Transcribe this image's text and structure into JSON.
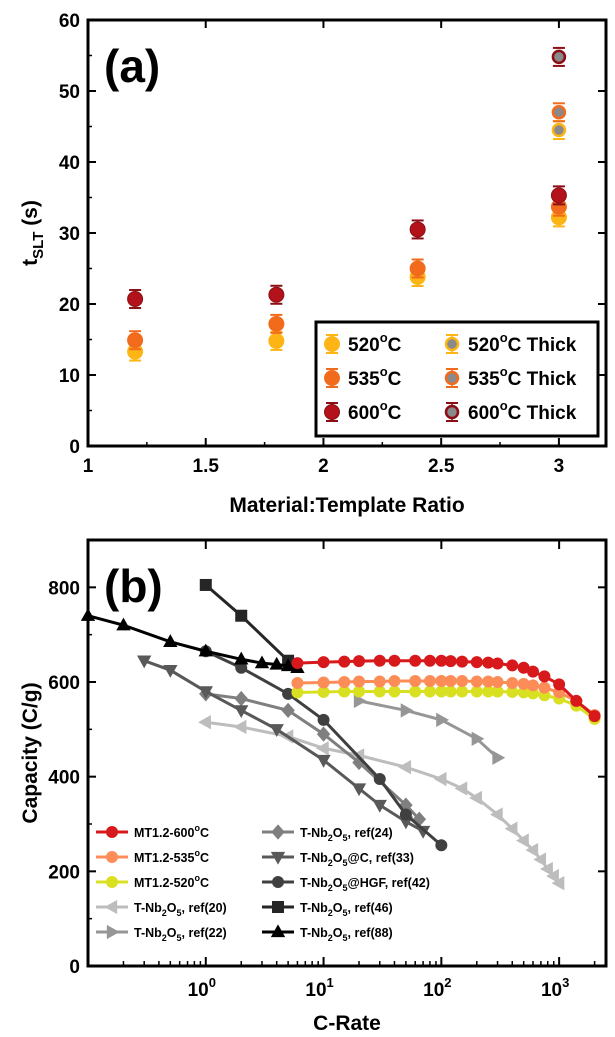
{
  "chart_data": [
    {
      "type": "scatter",
      "panel_label": "(a)",
      "xlabel": "Material:Template Ratio",
      "ylabel": "t_SLT (s)",
      "ylabel_main": "t",
      "ylabel_sub": "SLT",
      "ylabel_unit": " (s)",
      "xlim": [
        1,
        3.2
      ],
      "ylim": [
        0,
        60
      ],
      "xticks": [
        "1",
        "1.5",
        "2",
        "2.5",
        "3"
      ],
      "xtick_values": [
        1,
        1.5,
        2,
        2.5,
        3
      ],
      "yticks": [
        "0",
        "10",
        "20",
        "30",
        "40",
        "50",
        "60"
      ],
      "ytick_values": [
        0,
        10,
        20,
        30,
        40,
        50,
        60
      ],
      "legend_position": "bottom-right",
      "series": [
        {
          "name": "520°C",
          "label_main": "520",
          "label_sup": "o",
          "label_tail": "C",
          "color": "#FDB515",
          "edge": "#FDB515",
          "points": [
            [
              1.2,
              13.3
            ],
            [
              1.8,
              14.8
            ],
            [
              2.4,
              23.8
            ],
            [
              3,
              32.2
            ]
          ]
        },
        {
          "name": "535°C",
          "label_main": "535",
          "label_sup": "o",
          "label_tail": "C",
          "color": "#F26B1D",
          "edge": "#F26B1D",
          "points": [
            [
              1.2,
              14.9
            ],
            [
              1.8,
              17.2
            ],
            [
              2.4,
              25.0
            ],
            [
              3,
              33.7
            ]
          ]
        },
        {
          "name": "600°C",
          "label_main": "600",
          "label_sup": "o",
          "label_tail": "C",
          "color": "#B3121B",
          "edge": "#8B0E14",
          "points": [
            [
              1.2,
              20.7
            ],
            [
              1.8,
              21.3
            ],
            [
              2.4,
              30.5
            ],
            [
              3,
              35.3
            ]
          ]
        },
        {
          "name": "520°C Thick",
          "label_main": "520",
          "label_sup": "o",
          "label_tail": "C Thick",
          "color": "#8A8A8A",
          "edge": "#FDB515",
          "points": [
            [
              3,
              44.5
            ]
          ]
        },
        {
          "name": "535°C Thick",
          "label_main": "535",
          "label_sup": "o",
          "label_tail": "C Thick",
          "color": "#8A8A8A",
          "edge": "#F26B1D",
          "points": [
            [
              3,
              47.0
            ]
          ]
        },
        {
          "name": "600°C Thick",
          "label_main": "600",
          "label_sup": "o",
          "label_tail": "C Thick",
          "color": "#8A8A8A",
          "edge": "#8B0E14",
          "points": [
            [
              3,
              54.8
            ]
          ]
        }
      ]
    },
    {
      "type": "line",
      "panel_label": "(b)",
      "xlabel": "C-Rate",
      "ylabel": "Capacity (C/g)",
      "x_scale": "log",
      "xlim": [
        0.1,
        2500
      ],
      "ylim": [
        0,
        900
      ],
      "xticks_base": "10",
      "xticks_exp": [
        "0",
        "1",
        "2",
        "3"
      ],
      "xtick_values": [
        1,
        10,
        100,
        1000
      ],
      "yticks": [
        "0",
        "200",
        "400",
        "600",
        "800"
      ],
      "ytick_values": [
        0,
        200,
        400,
        600,
        800
      ],
      "legend_position": "bottom-left",
      "series": [
        {
          "name": "MT1.2-600°C",
          "label_main": "MT1.2-600",
          "label_sup": "o",
          "label_tail": "C",
          "color": "#D7191C",
          "marker": "circle",
          "x": [
            6,
            10,
            15,
            20,
            30,
            40,
            60,
            80,
            100,
            120,
            150,
            200,
            250,
            300,
            400,
            500,
            600,
            750,
            1000,
            1400,
            2000
          ],
          "y": [
            640,
            642,
            643,
            644,
            645,
            645,
            645,
            645,
            645,
            644,
            643,
            642,
            641,
            639,
            635,
            630,
            622,
            612,
            595,
            560,
            528
          ]
        },
        {
          "name": "MT1.2-535°C",
          "label_main": "MT1.2-535",
          "label_sup": "o",
          "label_tail": "C",
          "color": "#FC8D59",
          "marker": "circle",
          "x": [
            6,
            10,
            15,
            20,
            30,
            40,
            60,
            80,
            100,
            120,
            150,
            200,
            250,
            300,
            400,
            500,
            600,
            750,
            1000,
            1400,
            2000
          ],
          "y": [
            598,
            599,
            600,
            601,
            601,
            602,
            602,
            602,
            602,
            602,
            602,
            601,
            601,
            600,
            598,
            596,
            593,
            588,
            578,
            560,
            530
          ]
        },
        {
          "name": "MT1.2-520°C",
          "label_main": "MT1.2-520",
          "label_sup": "o",
          "label_tail": "C",
          "color": "#D9E021",
          "marker": "circle",
          "x": [
            6,
            10,
            15,
            20,
            30,
            40,
            60,
            80,
            100,
            120,
            150,
            200,
            250,
            300,
            400,
            500,
            600,
            750,
            1000,
            1400,
            2000
          ],
          "y": [
            578,
            579,
            580,
            580,
            580,
            580,
            580,
            580,
            580,
            580,
            580,
            580,
            580,
            580,
            579,
            578,
            576,
            572,
            565,
            550,
            522
          ]
        },
        {
          "name": "T-Nb2O5, ref(20)",
          "label_pre": "T-Nb",
          "label_s1": "2",
          "label_mid": "O",
          "label_s2": "5",
          "label_post": ", ref(20)",
          "color": "#BDBDBD",
          "marker": "triangle-left",
          "x": [
            1,
            2,
            5,
            10,
            20,
            50,
            100,
            150,
            200,
            300,
            400,
            500,
            600,
            700,
            800,
            900,
            1000
          ],
          "y": [
            515,
            505,
            485,
            460,
            445,
            420,
            395,
            375,
            355,
            320,
            290,
            265,
            245,
            225,
            205,
            190,
            175
          ]
        },
        {
          "name": "T-Nb2O5, ref(22)",
          "label_pre": "T-Nb",
          "label_s1": "2",
          "label_mid": "O",
          "label_s2": "5",
          "label_post": ", ref(22)",
          "color": "#969696",
          "marker": "triangle-right",
          "x": [
            20,
            50,
            100,
            200,
            300
          ],
          "y": [
            560,
            540,
            520,
            480,
            440
          ]
        },
        {
          "name": "T-Nb2O5, ref(24)",
          "label_pre": "T-Nb",
          "label_s1": "2",
          "label_mid": "O",
          "label_s2": "5",
          "label_post": ", ref(24)",
          "color": "#7F7F7F",
          "marker": "diamond",
          "x": [
            1,
            2,
            5,
            10,
            20,
            50,
            65
          ],
          "y": [
            575,
            565,
            540,
            490,
            430,
            340,
            310
          ]
        },
        {
          "name": "T-Nb2O5@C, ref(33)",
          "label_pre": "T-Nb",
          "label_s1": "2",
          "label_mid": "O",
          "label_s2": "5",
          "label_post": "@C, ref(33)",
          "color": "#595959",
          "marker": "triangle-down",
          "x": [
            0.3,
            0.5,
            1,
            2,
            4,
            10,
            20,
            30,
            50,
            70
          ],
          "y": [
            645,
            625,
            580,
            540,
            500,
            435,
            375,
            340,
            305,
            285
          ]
        },
        {
          "name": "T-Nb2O5@HGF, ref(42)",
          "label_pre": "T-Nb",
          "label_s1": "2",
          "label_mid": "O",
          "label_s2": "5",
          "label_post": "@HGF, ref(42)",
          "color": "#404040",
          "marker": "circle",
          "x": [
            1,
            2,
            5,
            10,
            30,
            50,
            100
          ],
          "y": [
            665,
            630,
            575,
            520,
            395,
            320,
            255
          ]
        },
        {
          "name": "T-Nb2O5, ref(46)",
          "label_pre": "T-Nb",
          "label_s1": "2",
          "label_mid": "O",
          "label_s2": "5",
          "label_post": ", ref(46)",
          "color": "#262626",
          "marker": "square",
          "x": [
            1,
            2,
            5
          ],
          "y": [
            805,
            740,
            645
          ]
        },
        {
          "name": "T-Nb2O5, ref(88)",
          "label_pre": "T-Nb",
          "label_s1": "2",
          "label_mid": "O",
          "label_s2": "5",
          "label_post": ", ref(88)",
          "color": "#000000",
          "marker": "triangle-up",
          "x": [
            0.1,
            0.2,
            0.5,
            1,
            2,
            3,
            4,
            5,
            6
          ],
          "y": [
            740,
            720,
            685,
            665,
            648,
            640,
            637,
            634,
            630
          ]
        }
      ]
    }
  ]
}
